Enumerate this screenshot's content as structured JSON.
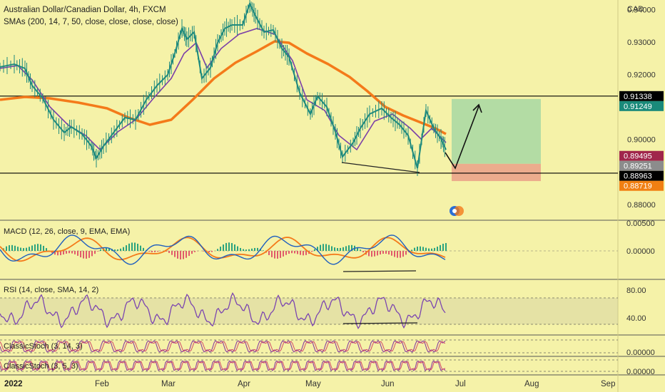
{
  "header": {
    "title": "Australian Dollar/Canadian Dollar, 4h, FXCM",
    "indicator": "SMAs (200, 14, 7, 50, close, close, close, close)"
  },
  "price_axis": {
    "currency": "CAD",
    "ticks": [
      "0.94000",
      "0.93000",
      "0.92000",
      "0.91000",
      "0.90000",
      "0.88000"
    ],
    "tick_values": [
      0.94,
      0.93,
      0.92,
      0.91,
      0.9,
      0.88
    ],
    "range": [
      0.876,
      0.943
    ],
    "tags": [
      {
        "text": "0.91338",
        "value": 0.91338,
        "bg": "#000000",
        "fg": "#ffffff"
      },
      {
        "text": "0.91249",
        "value": 0.91249,
        "bg": "#1a8a7a",
        "fg": "#ffffff"
      },
      {
        "text": "0.89495",
        "value": 0.89495,
        "bg": "#a0264b",
        "fg": "#ffffff"
      },
      {
        "text": "0.89251",
        "value": 0.89251,
        "bg": "#8c8c8c",
        "fg": "#ffffff"
      },
      {
        "text": "0.88963",
        "value": 0.88963,
        "bg": "#000000",
        "fg": "#ffffff"
      },
      {
        "text": "0.88719",
        "value": 0.88719,
        "bg": "#f07f12",
        "fg": "#ffffff"
      }
    ]
  },
  "horizontal_levels": [
    0.91338,
    0.88963
  ],
  "position": {
    "target": 0.91249,
    "entry": 0.89251,
    "stop": 0.88719
  },
  "panels": {
    "macd": {
      "label": "MACD (12, 26, close, 9, EMA, EMA)",
      "ticks": [
        "0.00500",
        "0.00000"
      ]
    },
    "rsi": {
      "label": "RSI (14, close, SMA, 14, 2)",
      "ticks": [
        "80.00",
        "40.00"
      ]
    },
    "stoch1": {
      "label": "ClassicStoch (3, 14, 3)",
      "ticks": [
        "0.00000"
      ]
    },
    "stoch2": {
      "label": "ClassicStoch (3, 5, 3)",
      "ticks": [
        "0.00000"
      ]
    }
  },
  "time_axis": {
    "labels": [
      "2022",
      "Feb",
      "Mar",
      "Apr",
      "May",
      "Jun",
      "Jul",
      "Aug",
      "Sep"
    ]
  },
  "colors": {
    "background": "#f5f2a8",
    "price": "#1e8a7e",
    "sma14": "#7b3fa8",
    "sma200": "#f47a1a",
    "target_zone": "#a7d8a3",
    "stop_zone": "#eba48a",
    "macd_line": "#1f5fbf",
    "signal_line": "#f47a1a",
    "rsi_line": "#7b45b0"
  }
}
